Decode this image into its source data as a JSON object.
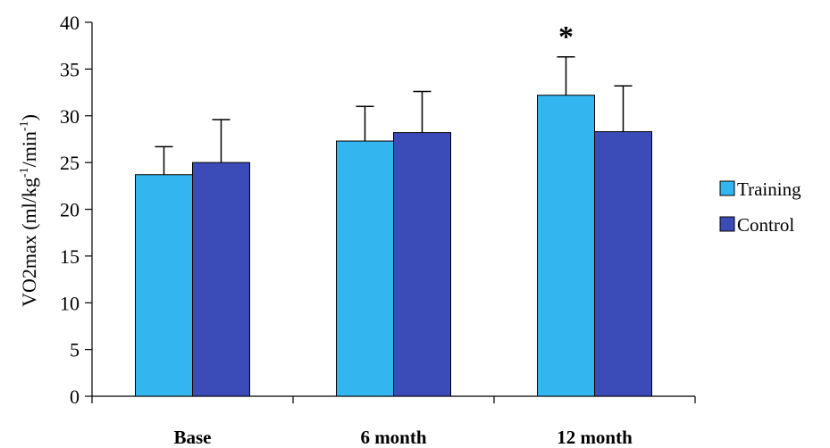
{
  "chart_data": {
    "type": "bar",
    "title": "",
    "xlabel": "",
    "ylabel": "VO2max (ml/kg",
    "ylabel_sup1": "-1",
    "ylabel_mid": "/min",
    "ylabel_sup2": "-1",
    "ylabel_end": ")",
    "ylim": [
      0,
      40
    ],
    "yticks": [
      0,
      5,
      10,
      15,
      20,
      25,
      30,
      35,
      40
    ],
    "categories": [
      "Base",
      "6 month",
      "12 month"
    ],
    "series": [
      {
        "name": "Training",
        "color": "#33b5f0",
        "values": [
          23.7,
          27.3,
          32.2
        ],
        "errors": [
          3.0,
          3.7,
          4.1
        ]
      },
      {
        "name": "Control",
        "color": "#3b4cb8",
        "values": [
          25.0,
          28.2,
          28.3
        ],
        "errors": [
          4.6,
          4.4,
          4.9
        ]
      }
    ],
    "annotations": [
      {
        "text": "*",
        "category_index": 2,
        "series_index": 0
      }
    ],
    "legend_position": "right",
    "grid": false
  }
}
